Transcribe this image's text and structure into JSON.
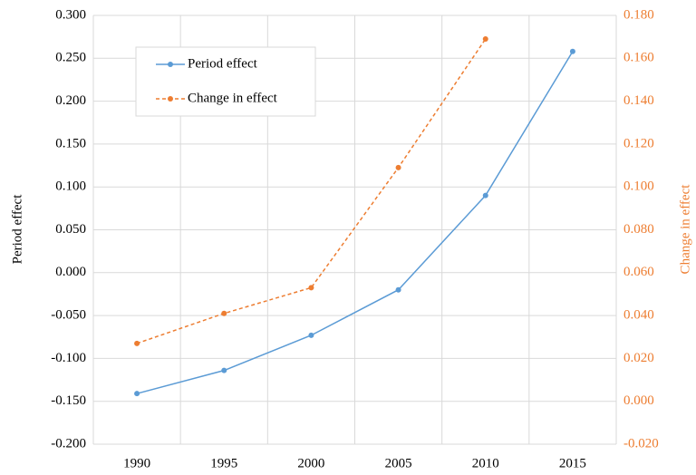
{
  "chart_data": {
    "type": "line",
    "categories": [
      "1990",
      "1995",
      "2000",
      "2005",
      "2010",
      "2015"
    ],
    "series": [
      {
        "name": "Period effect",
        "color": "#5b9bd5",
        "line_style": "solid",
        "axis": "y",
        "values": [
          -0.141,
          -0.114,
          -0.073,
          -0.02,
          0.09,
          0.258
        ]
      },
      {
        "name": "Change in effect",
        "color": "#ed7d31",
        "line_style": "dashed",
        "axis": "y2",
        "values": [
          0.027,
          0.041,
          0.053,
          0.109,
          0.169,
          null
        ]
      }
    ],
    "ylabel": "Period effect",
    "y2label": "Change in effect",
    "ylim": [
      -0.2,
      0.3
    ],
    "yticks": [
      {
        "value": -0.2,
        "label": "-0.200"
      },
      {
        "value": -0.15,
        "label": "-0.150"
      },
      {
        "value": -0.1,
        "label": "-0.100"
      },
      {
        "value": -0.05,
        "label": "-0.050"
      },
      {
        "value": 0,
        "label": "0.000"
      },
      {
        "value": 0.05,
        "label": "0.050"
      },
      {
        "value": 0.1,
        "label": "0.100"
      },
      {
        "value": 0.15,
        "label": "0.150"
      },
      {
        "value": 0.2,
        "label": "0.200"
      },
      {
        "value": 0.25,
        "label": "0.250"
      },
      {
        "value": 0.3,
        "label": "0.300"
      }
    ],
    "y2lim": [
      -0.02,
      0.18
    ],
    "y2ticks": [
      {
        "value": -0.02,
        "label": "-0.020"
      },
      {
        "value": 0,
        "label": "0.000"
      },
      {
        "value": 0.02,
        "label": "0.020"
      },
      {
        "value": 0.04,
        "label": "0.040"
      },
      {
        "value": 0.06,
        "label": "0.060"
      },
      {
        "value": 0.08,
        "label": "0.080"
      },
      {
        "value": 0.1,
        "label": "0.100"
      },
      {
        "value": 0.12,
        "label": "0.120"
      },
      {
        "value": 0.14,
        "label": "0.140"
      },
      {
        "value": 0.16,
        "label": "0.160"
      },
      {
        "value": 0.18,
        "label": "0.180"
      }
    ],
    "grid": true,
    "legend": "upper left"
  }
}
